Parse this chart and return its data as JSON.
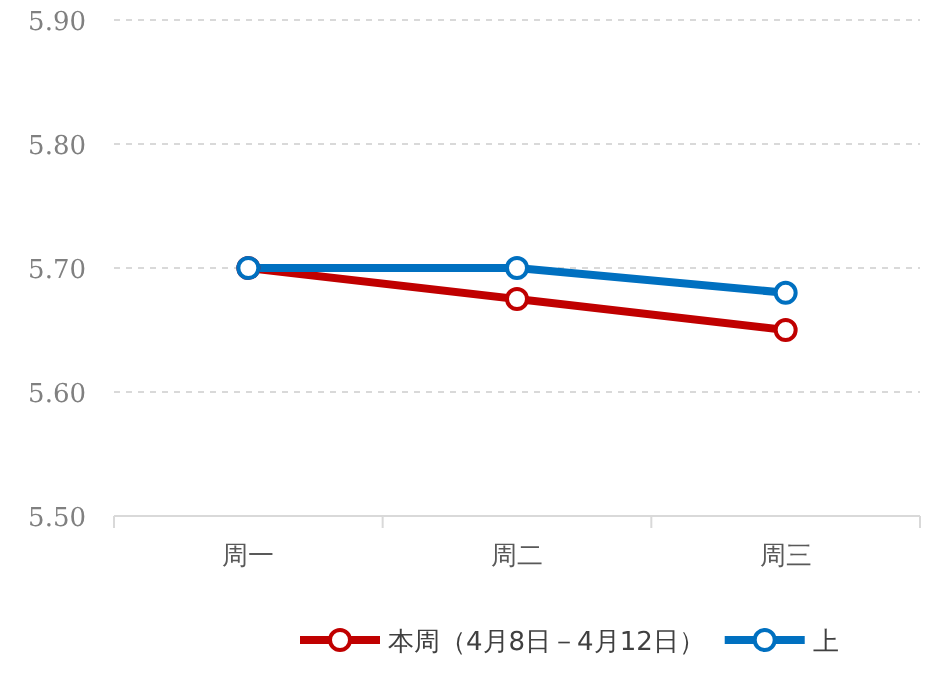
{
  "chart_data": {
    "type": "line",
    "categories": [
      "周一",
      "周二",
      "周三"
    ],
    "series": [
      {
        "name": "本周（4月8日－4月12日）",
        "color": "#c00000",
        "values": [
          5.7,
          5.675,
          5.65
        ]
      },
      {
        "name": "上",
        "color": "#0070c0",
        "values": [
          5.7,
          5.7,
          5.68
        ]
      }
    ],
    "ylim": [
      5.5,
      5.9
    ],
    "yticks": [
      {
        "value": 5.5,
        "label": "5.50"
      },
      {
        "value": 5.6,
        "label": "5.60"
      },
      {
        "value": 5.7,
        "label": "5.70"
      },
      {
        "value": 5.8,
        "label": "5.80"
      },
      {
        "value": 5.9,
        "label": "5.90"
      }
    ],
    "grid": "y",
    "legend": "bottom",
    "marker": "circle",
    "line_style": "solid"
  }
}
